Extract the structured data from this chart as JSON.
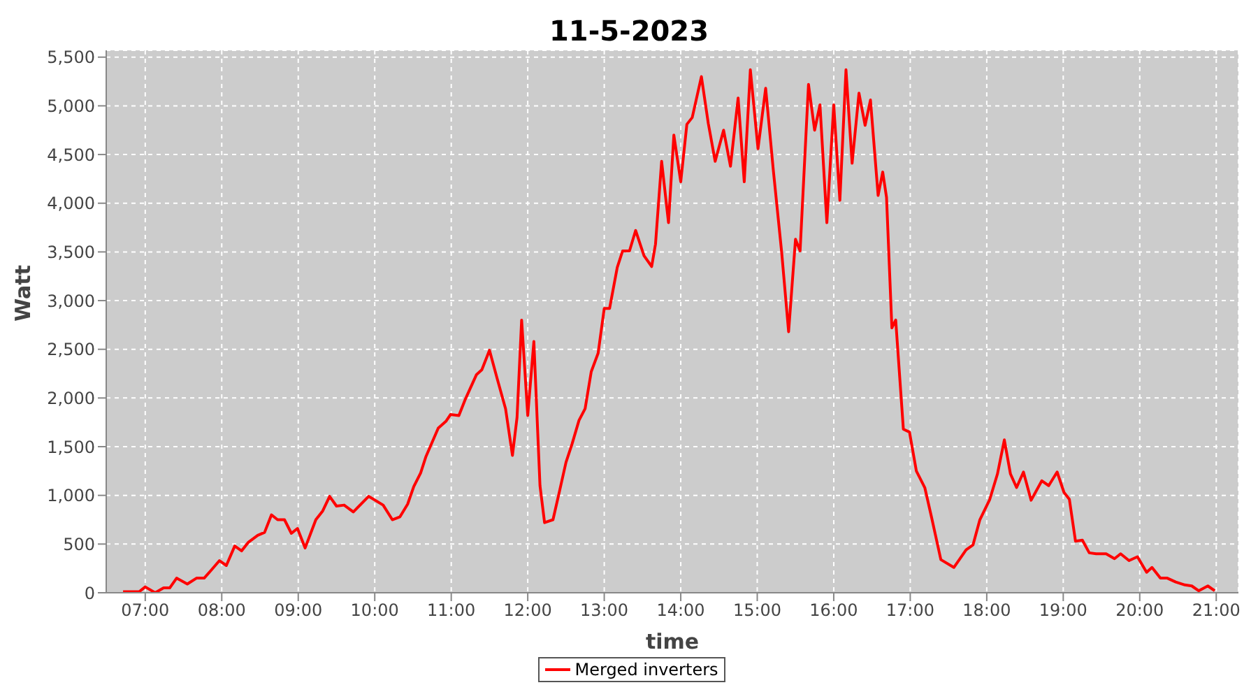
{
  "chart_data": {
    "type": "line",
    "title": "11-5-2023",
    "xlabel": "time",
    "ylabel": "Watt",
    "x": [
      6.71,
      6.92,
      7.0,
      7.13,
      7.24,
      7.32,
      7.41,
      7.55,
      7.67,
      7.77,
      7.86,
      7.97,
      8.06,
      8.17,
      8.26,
      8.35,
      8.47,
      8.56,
      8.65,
      8.73,
      8.82,
      8.91,
      8.99,
      9.09,
      9.23,
      9.32,
      9.41,
      9.5,
      9.6,
      9.72,
      9.92,
      10.11,
      10.23,
      10.33,
      10.43,
      10.51,
      10.6,
      10.67,
      10.83,
      10.93,
      10.99,
      11.1,
      11.18,
      11.33,
      11.4,
      11.5,
      11.6,
      11.71,
      11.8,
      11.86,
      11.92,
      12.0,
      12.08,
      12.16,
      12.22,
      12.33,
      12.42,
      12.5,
      12.58,
      12.67,
      12.75,
      12.83,
      12.92,
      13.0,
      13.07,
      13.17,
      13.24,
      13.33,
      13.41,
      13.52,
      13.62,
      13.67,
      13.75,
      13.84,
      13.91,
      14.0,
      14.08,
      14.15,
      14.27,
      14.36,
      14.45,
      14.56,
      14.65,
      14.75,
      14.83,
      14.91,
      15.01,
      15.11,
      15.21,
      15.32,
      15.41,
      15.5,
      15.56,
      15.67,
      15.75,
      15.82,
      15.91,
      16.0,
      16.08,
      16.16,
      16.24,
      16.33,
      16.41,
      16.48,
      16.58,
      16.64,
      16.69,
      16.76,
      16.81,
      16.91,
      16.99,
      17.08,
      17.19,
      17.28,
      17.4,
      17.57,
      17.73,
      17.82,
      17.91,
      18.04,
      18.14,
      18.23,
      18.31,
      18.39,
      18.48,
      18.58,
      18.72,
      18.81,
      18.92,
      19.01,
      19.08,
      19.16,
      19.25,
      19.34,
      19.43,
      19.56,
      19.67,
      19.75,
      19.86,
      19.97,
      20.09,
      20.16,
      20.27,
      20.36,
      20.47,
      20.59,
      20.68,
      20.77,
      20.89,
      20.98
    ],
    "series": [
      {
        "name": "Merged inverters",
        "color": "#ff0000",
        "values": [
          10,
          10,
          60,
          0,
          50,
          50,
          150,
          90,
          150,
          150,
          230,
          330,
          280,
          480,
          430,
          520,
          590,
          620,
          800,
          750,
          750,
          610,
          660,
          460,
          750,
          840,
          990,
          890,
          900,
          830,
          990,
          900,
          750,
          780,
          910,
          1090,
          1230,
          1400,
          1690,
          1760,
          1830,
          1820,
          1980,
          2240,
          2290,
          2490,
          2200,
          1890,
          1410,
          1800,
          2800,
          1820,
          2580,
          1100,
          720,
          750,
          1060,
          1340,
          1530,
          1770,
          1890,
          2270,
          2460,
          2920,
          2920,
          3340,
          3510,
          3510,
          3720,
          3460,
          3350,
          3580,
          4430,
          3800,
          4700,
          4220,
          4810,
          4880,
          5300,
          4820,
          4430,
          4750,
          4380,
          5080,
          4220,
          5370,
          4560,
          5180,
          4340,
          3490,
          2680,
          3630,
          3510,
          5220,
          4750,
          5010,
          3800,
          5010,
          4030,
          5370,
          4410,
          5130,
          4800,
          5060,
          4080,
          4320,
          4060,
          2720,
          2800,
          1680,
          1650,
          1250,
          1080,
          770,
          340,
          260,
          440,
          490,
          750,
          960,
          1220,
          1570,
          1220,
          1080,
          1240,
          950,
          1150,
          1100,
          1240,
          1030,
          960,
          530,
          540,
          410,
          400,
          400,
          350,
          400,
          330,
          370,
          210,
          260,
          150,
          150,
          110,
          80,
          70,
          20,
          70,
          20
        ]
      }
    ],
    "xlim": [
      6.49,
      21.29
    ],
    "xticks": [
      {
        "value": 7,
        "label": "07:00"
      },
      {
        "value": 8,
        "label": "08:00"
      },
      {
        "value": 9,
        "label": "09:00"
      },
      {
        "value": 10,
        "label": "10:00"
      },
      {
        "value": 11,
        "label": "11:00"
      },
      {
        "value": 12,
        "label": "12:00"
      },
      {
        "value": 13,
        "label": "13:00"
      },
      {
        "value": 14,
        "label": "14:00"
      },
      {
        "value": 15,
        "label": "15:00"
      },
      {
        "value": 16,
        "label": "16:00"
      },
      {
        "value": 17,
        "label": "17:00"
      },
      {
        "value": 18,
        "label": "18:00"
      },
      {
        "value": 19,
        "label": "19:00"
      },
      {
        "value": 20,
        "label": "20:00"
      },
      {
        "value": 21,
        "label": "21:00"
      }
    ],
    "ylim": [
      0,
      5570
    ],
    "yticks": [
      0,
      500,
      {
        "value": 1000,
        "label": "1,000"
      },
      {
        "value": 1500,
        "label": "1,500"
      },
      {
        "value": 2000,
        "label": "2,000"
      },
      {
        "value": 2500,
        "label": "2,500"
      },
      {
        "value": 3000,
        "label": "3,000"
      },
      {
        "value": 3500,
        "label": "3,500"
      },
      {
        "value": 4000,
        "label": "4,000"
      },
      {
        "value": 4500,
        "label": "4,500"
      },
      {
        "value": 5000,
        "label": "5,000"
      },
      {
        "value": 5500,
        "label": "5,500"
      }
    ],
    "grid": true,
    "legend": "bottom",
    "marker": "none",
    "line_style": "solid"
  }
}
